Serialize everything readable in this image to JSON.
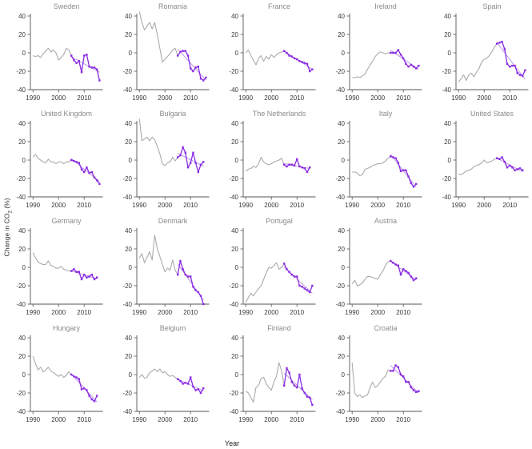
{
  "figure": {
    "ylabel_main": "Change in CO",
    "ylabel_sub": "2",
    "ylabel_suffix": " (%)",
    "xlabel": "Year"
  },
  "chart_data": {
    "type": "line",
    "title": "",
    "xlabel": "Year",
    "ylabel": "Change in CO2 (%)",
    "x_ticks": [
      1990,
      2000,
      2010
    ],
    "y_ticks": [
      -40,
      -20,
      0,
      20,
      40
    ],
    "xlim": [
      1989,
      2017
    ],
    "ylim": [
      -45,
      45
    ],
    "grid": "off",
    "legend": "none",
    "gray_start_year": 1990,
    "highlight_start_year": 2005,
    "series_notes": {
      "gray": "full history 1990-2005, one value per year",
      "purple": "highlighted recent period with markers, from 2005 onward, one value per year",
      "trend": "straight linear-fit line drawn over the purple period"
    },
    "style": {
      "gray": "#ababab",
      "purple": "#8a2be2",
      "trend": "#bb97e8",
      "axis": "#555555",
      "tick_text": "#3a3a3a",
      "title_text": "#8a8a8a"
    },
    "charts": [
      {
        "name": "Sweden",
        "gray": [
          -3,
          -4,
          -3,
          -5,
          -1,
          2,
          5,
          1,
          3,
          0,
          -8,
          -5,
          -2,
          5,
          3,
          -3
        ],
        "purple": [
          -3,
          -8,
          -11,
          -9,
          -21,
          -3,
          -2,
          -15,
          -16,
          -16,
          -18,
          -30
        ]
      },
      {
        "name": "Romania",
        "gray": [
          45,
          33,
          25,
          29,
          33,
          26,
          33,
          20,
          5,
          -10,
          -7,
          -4,
          -1,
          3,
          5,
          -3
        ],
        "purple": [
          -3,
          1,
          2,
          2,
          -3,
          -17,
          -20,
          -16,
          -15,
          -28,
          -30,
          -27
        ]
      },
      {
        "name": "France",
        "gray": [
          0,
          3,
          -3,
          -8,
          -13,
          -6,
          -3,
          -9,
          -4,
          -7,
          -2,
          -5,
          -2,
          0,
          1,
          2
        ],
        "purple": [
          2,
          0,
          -3,
          -4,
          -6,
          -7,
          -9,
          -10,
          -11,
          -12,
          -20,
          -18
        ]
      },
      {
        "name": "Ireland",
        "gray": [
          -27,
          -27,
          -26,
          -27,
          -25,
          -23,
          -18,
          -13,
          -9,
          -4,
          -1,
          1,
          0,
          -1,
          0,
          0
        ],
        "purple": [
          0,
          0,
          0,
          3,
          -2,
          -6,
          -12,
          -15,
          -13,
          -15,
          -17,
          -14
        ]
      },
      {
        "name": "Spain",
        "gray": [
          -32,
          -28,
          -24,
          -30,
          -24,
          -22,
          -26,
          -21,
          -17,
          -10,
          -7,
          -6,
          -3,
          1,
          6,
          10
        ],
        "purple": [
          10,
          11,
          12,
          4,
          -12,
          -15,
          -14,
          -14,
          -22,
          -24,
          -25,
          -19
        ]
      },
      {
        "name": "United Kingdom",
        "gray": [
          3,
          6,
          2,
          0,
          -2,
          -3,
          1,
          -2,
          -2,
          -4,
          -2,
          -2,
          -4,
          -2,
          -2,
          0
        ],
        "purple": [
          0,
          -1,
          -2,
          -3,
          -10,
          -13,
          -8,
          -14,
          -13,
          -19,
          -22,
          -26
        ]
      },
      {
        "name": "Bulgaria",
        "gray": [
          45,
          21,
          23,
          25,
          21,
          25,
          22,
          15,
          7,
          -4,
          -6,
          -3,
          -2,
          3,
          -1,
          3
        ],
        "purple": [
          3,
          5,
          14,
          8,
          -8,
          -3,
          8,
          -3,
          -13,
          -5,
          -2
        ]
      },
      {
        "name": "The Netherlands",
        "gray": [
          -12,
          -10,
          -9,
          -7,
          -8,
          -4,
          3,
          -2,
          -4,
          -5,
          -4,
          -2,
          -1,
          0,
          2,
          -5
        ],
        "purple": [
          -5,
          -7,
          -5,
          -5,
          -6,
          1,
          -7,
          -8,
          -9,
          -13,
          -8
        ]
      },
      {
        "name": "Italy",
        "gray": [
          -13,
          -13,
          -14,
          -17,
          -16,
          -10,
          -9,
          -8,
          -6,
          -5,
          -4,
          -4,
          -3,
          -1,
          2,
          4
        ],
        "purple": [
          4,
          3,
          2,
          -3,
          -12,
          -11,
          -11,
          -18,
          -25,
          -29,
          -26
        ]
      },
      {
        "name": "United States",
        "gray": [
          -15,
          -16,
          -14,
          -12,
          -11,
          -10,
          -7,
          -6,
          -5,
          -3,
          0,
          -3,
          -2,
          -1,
          1,
          2
        ],
        "purple": [
          2,
          1,
          3,
          -2,
          -8,
          -6,
          -8,
          -11,
          -10,
          -9,
          -11
        ]
      },
      {
        "name": "Germany",
        "gray": [
          16,
          10,
          6,
          4,
          3,
          3,
          7,
          2,
          1,
          -1,
          -1,
          1,
          -2,
          -3,
          -4,
          -4
        ],
        "purple": [
          -4,
          -2,
          -5,
          -5,
          -13,
          -8,
          -11,
          -10,
          -8,
          -13,
          -11
        ]
      },
      {
        "name": "Denmark",
        "gray": [
          10,
          15,
          5,
          11,
          17,
          8,
          35,
          20,
          12,
          3,
          -5,
          -1,
          -3,
          8,
          -3,
          -8
        ],
        "purple": [
          -8,
          7,
          -2,
          -8,
          -10,
          -10,
          -21,
          -25,
          -27,
          -31,
          -40
        ]
      },
      {
        "name": "Portugal",
        "gray": [
          -38,
          -33,
          -28,
          -31,
          -27,
          -23,
          -20,
          -13,
          -6,
          0,
          -1,
          2,
          5,
          -2,
          0,
          4
        ],
        "purple": [
          4,
          -2,
          -5,
          -8,
          -10,
          -10,
          -20,
          -21,
          -23,
          -25,
          -27,
          -20
        ]
      },
      {
        "name": "Austria",
        "gray": [
          -18,
          -14,
          -20,
          -19,
          -17,
          -13,
          -10,
          -10,
          -11,
          -12,
          -13,
          -8,
          -4,
          2,
          6,
          7
        ],
        "purple": [
          7,
          5,
          3,
          2,
          -8,
          -2,
          -4,
          -6,
          -10,
          -14,
          -12
        ]
      },
      null,
      {
        "name": "Hungary",
        "gray": [
          20,
          12,
          5,
          8,
          3,
          5,
          8,
          4,
          2,
          0,
          -2,
          0,
          -3,
          -1,
          3,
          0
        ],
        "purple": [
          0,
          -2,
          -3,
          -5,
          -16,
          -15,
          -17,
          -23,
          -27,
          -29,
          -23
        ]
      },
      {
        "name": "Belgium",
        "gray": [
          -3,
          0,
          -4,
          -3,
          2,
          4,
          6,
          3,
          6,
          2,
          3,
          0,
          -2,
          -1,
          -3,
          -5
        ],
        "purple": [
          -5,
          -7,
          -10,
          -9,
          -10,
          -3,
          -13,
          -17,
          -16,
          -20,
          -15
        ]
      },
      {
        "name": "Finland",
        "gray": [
          -18,
          -20,
          -25,
          -30,
          -14,
          -12,
          -4,
          -3,
          -10,
          -14,
          -17,
          -8,
          -2,
          13,
          4,
          -12
        ],
        "purple": [
          -12,
          7,
          2,
          -8,
          -12,
          -14,
          0,
          -15,
          -20,
          -24,
          -25,
          -33
        ]
      },
      {
        "name": "Croatia",
        "gray": [
          13,
          -20,
          -24,
          -22,
          -25,
          -23,
          -22,
          -14,
          -8,
          -14,
          -12,
          -8,
          -4,
          -2,
          5,
          4
        ],
        "purple": [
          4,
          4,
          10,
          8,
          0,
          -2,
          -8,
          -8,
          -14,
          -17,
          -19,
          -18
        ]
      },
      null
    ]
  }
}
